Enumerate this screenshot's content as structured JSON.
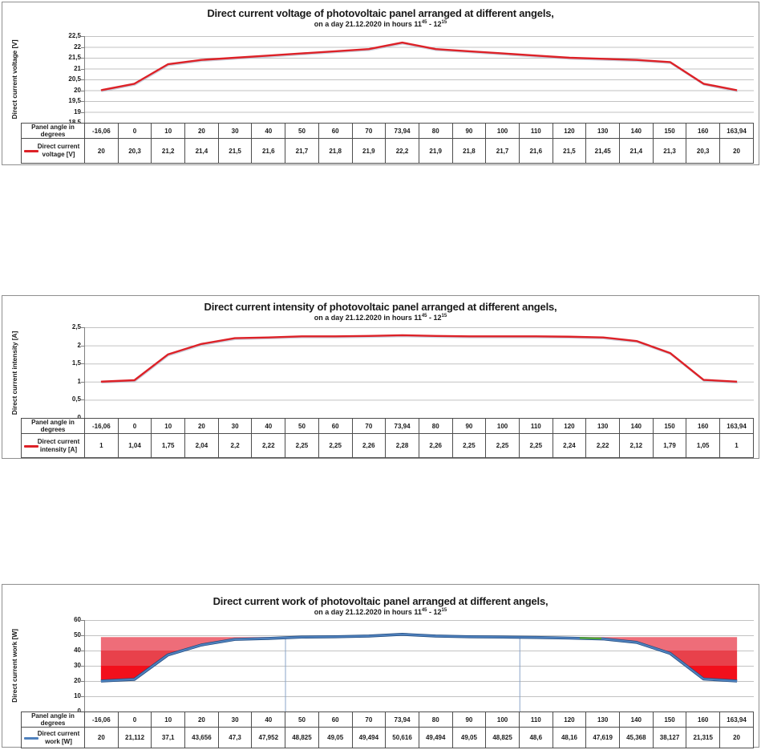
{
  "colors": {
    "figure_border": "#8f8f8f",
    "grid": "#c2c2c2",
    "axis": "#808080",
    "table_border": "#4d4d4d",
    "voltage_line": "#dd2127",
    "intensity_line": "#dd2127",
    "work_line": "#4f81bd",
    "work_line_edge": "#1f497d",
    "drop_line": "#8aa4c8",
    "overlay_green": "#4ea72e",
    "deficit_band_light": "#ee6d79",
    "deficit_band_mid": "#e8414b",
    "deficit_band_deep": "#f2101c"
  },
  "chart_data": [
    {
      "type": "line",
      "title": "Direct current voltage of photovoltaic panel arranged at different angels,",
      "subtitle": {
        "prefix": "on a day 21.12.2020  in hours 11",
        "sup1": "45",
        "mid": " - 12",
        "sup2": "15"
      },
      "ylabel": "Direct current voltage [V]",
      "ylim": [
        18.5,
        22.5
      ],
      "y_ticks": [
        "22,5",
        "22",
        "21,5",
        "21",
        "20,5",
        "20",
        "19,5",
        "19",
        "18,5"
      ],
      "line_color": "#dd2127",
      "grid": true,
      "legend_position": "table-left",
      "row_label": "Panel angle in degrees",
      "legend": {
        "line1": "Direct current",
        "line2": "voltage [V]"
      },
      "categories": [
        "-16,06",
        "0",
        "10",
        "20",
        "30",
        "40",
        "50",
        "60",
        "70",
        "73,94",
        "80",
        "90",
        "100",
        "110",
        "120",
        "130",
        "140",
        "150",
        "160",
        "163,94"
      ],
      "values": [
        20,
        20.3,
        21.2,
        21.4,
        21.5,
        21.6,
        21.7,
        21.8,
        21.9,
        22.2,
        21.9,
        21.8,
        21.7,
        21.6,
        21.5,
        21.45,
        21.4,
        21.3,
        20.3,
        20
      ],
      "values_display": [
        "20",
        "20,3",
        "21,2",
        "21,4",
        "21,5",
        "21,6",
        "21,7",
        "21,8",
        "21,9",
        "22,2",
        "21,9",
        "21,8",
        "21,7",
        "21,6",
        "21,5",
        "21,45",
        "21,4",
        "21,3",
        "20,3",
        "20"
      ]
    },
    {
      "type": "line",
      "title": "Direct current intensity of photovoltaic panel arranged at different angels,",
      "subtitle": {
        "prefix": "on a day 21.12.2020  in hours 11",
        "sup1": "45",
        "mid": " - 12",
        "sup2": "15"
      },
      "ylabel": "Direct current intensity [A]",
      "ylim": [
        0,
        2.5
      ],
      "y_ticks": [
        "2,5",
        "2",
        "1,5",
        "1",
        "0,5",
        "0"
      ],
      "line_color": "#dd2127",
      "grid": true,
      "legend_position": "table-left",
      "row_label": "Panel angle in degrees",
      "legend": {
        "line1": "Direct current",
        "line2": "intensity [A]"
      },
      "categories": [
        "-16,06",
        "0",
        "10",
        "20",
        "30",
        "40",
        "50",
        "60",
        "70",
        "73,94",
        "80",
        "90",
        "100",
        "110",
        "120",
        "130",
        "140",
        "150",
        "160",
        "163,94"
      ],
      "values": [
        1,
        1.04,
        1.75,
        2.04,
        2.2,
        2.22,
        2.25,
        2.25,
        2.26,
        2.28,
        2.26,
        2.25,
        2.25,
        2.25,
        2.24,
        2.22,
        2.12,
        1.79,
        1.05,
        1
      ],
      "values_display": [
        "1",
        "1,04",
        "1,75",
        "2,04",
        "2,2",
        "2,22",
        "2,25",
        "2,25",
        "2,26",
        "2,28",
        "2,26",
        "2,25",
        "2,25",
        "2,25",
        "2,24",
        "2,22",
        "2,12",
        "1,79",
        "1,05",
        "1"
      ]
    },
    {
      "type": "line",
      "title": "Direct current work of photovoltaic panel arranged at different angels,",
      "subtitle": {
        "prefix": "on a day 21.12.2020  in hours 11",
        "sup1": "45",
        "mid": " - 12",
        "sup2": "15"
      },
      "ylabel": "Direct current work [W]",
      "ylim": [
        0,
        60
      ],
      "y_ticks": [
        "60",
        "50",
        "40",
        "30",
        "20",
        "10",
        "0"
      ],
      "line_color": "#4f81bd",
      "line_edge_color": "#1f497d",
      "grid": true,
      "legend_position": "table-left",
      "row_label": "Panel angle in degrees",
      "legend": {
        "line1": "Direct current",
        "line2": "work [W]"
      },
      "categories": [
        "-16,06",
        "0",
        "10",
        "20",
        "30",
        "40",
        "50",
        "60",
        "70",
        "73,94",
        "80",
        "90",
        "100",
        "110",
        "120",
        "130",
        "140",
        "150",
        "160",
        "163,94"
      ],
      "values": [
        20,
        21.112,
        37.1,
        43.656,
        47.3,
        47.952,
        48.825,
        49.05,
        49.494,
        50.616,
        49.494,
        49.05,
        48.825,
        48.6,
        48.16,
        47.619,
        45.368,
        38.127,
        21.315,
        20
      ],
      "values_display": [
        "20",
        "21,112",
        "37,1",
        "43,656",
        "47,3",
        "47,952",
        "48,825",
        "49,05",
        "49,494",
        "50,616",
        "49,494",
        "49,05",
        "48,825",
        "48,6",
        "48,16",
        "47,619",
        "45,368",
        "38,127",
        "21,315",
        "20"
      ],
      "deficit_fill": {
        "top_value": 48.8,
        "bands": [
          {
            "from": 48.8,
            "to": 40,
            "color": "#ee6d79"
          },
          {
            "from": 40,
            "to": 30,
            "color": "#e8414b"
          },
          {
            "from": 30,
            "to": 0,
            "color": "#f2101c"
          }
        ]
      },
      "drop_lines": {
        "color": "#8aa4c8",
        "boundaries": [
          6,
          13
        ]
      },
      "overlay_segment": {
        "color": "#4ea72e",
        "from_point": 14.3,
        "to_point": 14.95
      }
    }
  ]
}
